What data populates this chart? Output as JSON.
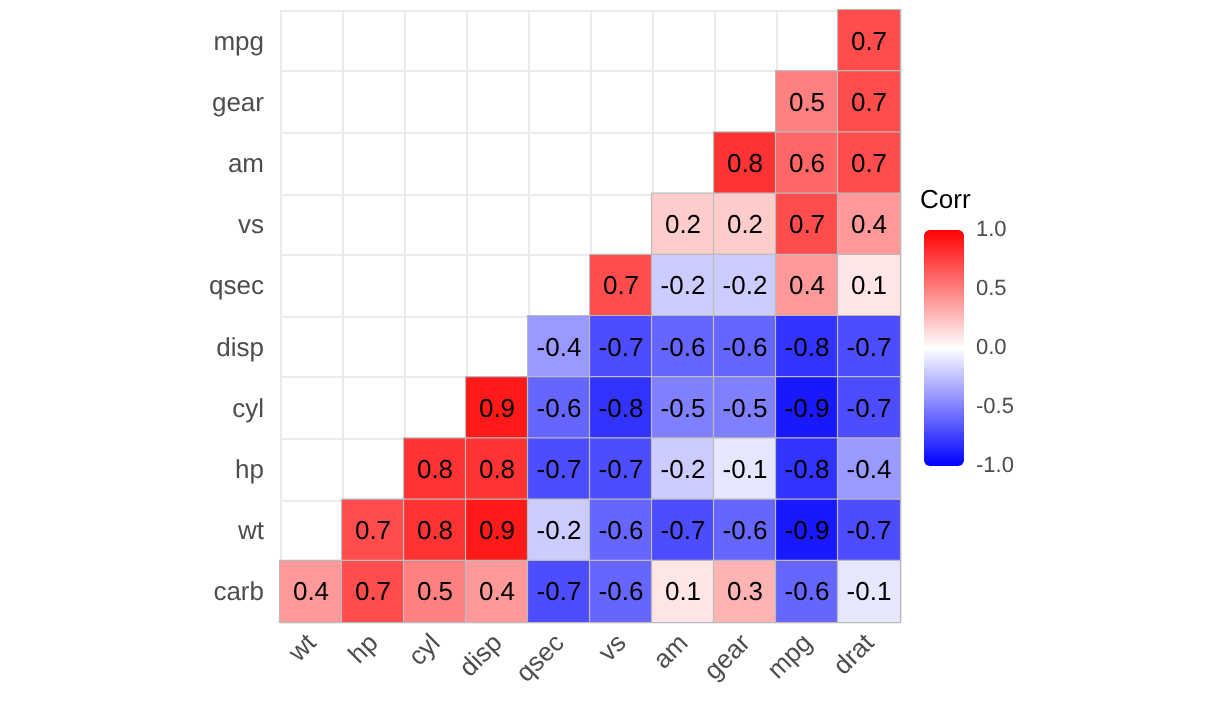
{
  "chart_data": {
    "type": "heatmap",
    "legend_title": "Corr",
    "categories": [
      "wt",
      "hp",
      "cyl",
      "disp",
      "qsec",
      "vs",
      "am",
      "gear",
      "mpg",
      "drat"
    ],
    "y_categories": [
      "mpg",
      "gear",
      "am",
      "vs",
      "qsec",
      "disp",
      "cyl",
      "hp",
      "wt",
      "carb"
    ],
    "cells": [
      [
        null,
        null,
        null,
        null,
        null,
        null,
        null,
        null,
        null,
        0.7
      ],
      [
        null,
        null,
        null,
        null,
        null,
        null,
        null,
        null,
        0.5,
        0.7
      ],
      [
        null,
        null,
        null,
        null,
        null,
        null,
        null,
        0.8,
        0.6,
        0.7
      ],
      [
        null,
        null,
        null,
        null,
        null,
        null,
        0.2,
        0.2,
        0.7,
        0.4
      ],
      [
        null,
        null,
        null,
        null,
        null,
        0.7,
        -0.2,
        -0.2,
        0.4,
        0.1
      ],
      [
        null,
        null,
        null,
        null,
        -0.4,
        -0.7,
        -0.6,
        -0.6,
        -0.8,
        -0.7
      ],
      [
        null,
        null,
        null,
        0.9,
        -0.6,
        -0.8,
        -0.5,
        -0.5,
        -0.9,
        -0.7
      ],
      [
        null,
        null,
        0.8,
        0.8,
        -0.7,
        -0.7,
        -0.2,
        -0.1,
        -0.8,
        -0.4
      ],
      [
        null,
        0.7,
        0.8,
        0.9,
        -0.2,
        -0.6,
        -0.7,
        -0.6,
        -0.9,
        -0.7
      ],
      [
        0.4,
        0.7,
        0.5,
        0.4,
        -0.7,
        -0.6,
        0.1,
        0.3,
        -0.6,
        -0.1
      ]
    ],
    "clim": [
      -1,
      1
    ],
    "cticks": [
      {
        "value": -1,
        "label": "-1.0"
      },
      {
        "value": -0.5,
        "label": "-0.5"
      },
      {
        "value": 0,
        "label": "0.0"
      },
      {
        "value": 0.5,
        "label": "0.5"
      },
      {
        "value": 1,
        "label": "1.0"
      }
    ],
    "data_labels": true,
    "grid": true
  }
}
